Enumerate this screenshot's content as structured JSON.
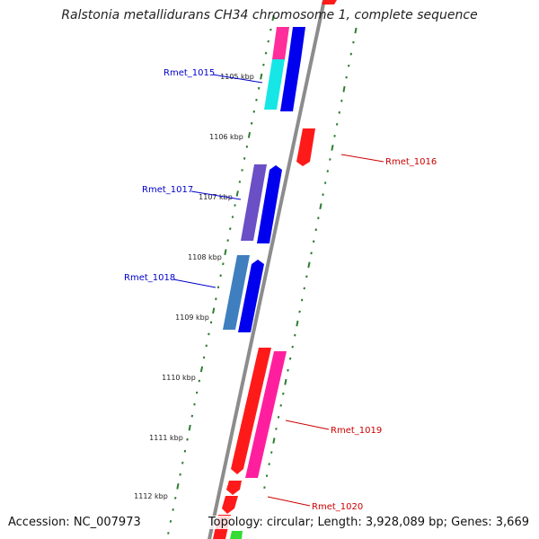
{
  "title": "Ralstonia metallidurans CH34 chromosome 1, complete sequence",
  "footer": {
    "accession": "Accession: NC_007973",
    "summary": "Topology: circular; Length: 3,928,089 bp; Genes: 3,669"
  },
  "colors": {
    "backbone": "#8c8c8c",
    "tick": "#2e7d32",
    "forward_label": "#0000cc",
    "reverse_label": "#cc0000"
  },
  "kbp_labels": [
    "1105 kbp",
    "1106 kbp",
    "1107 kbp",
    "1108 kbp",
    "1109 kbp",
    "1110 kbp",
    "1111 kbp",
    "1112 kbp"
  ],
  "gene_labels": [
    {
      "name": "Rmet_1015",
      "strand": "forward"
    },
    {
      "name": "Rmet_1016",
      "strand": "reverse"
    },
    {
      "name": "Rmet_1017",
      "strand": "forward"
    },
    {
      "name": "Rmet_1018",
      "strand": "forward"
    },
    {
      "name": "Rmet_1019",
      "strand": "reverse"
    },
    {
      "name": "Rmet_1020",
      "strand": "reverse"
    }
  ]
}
